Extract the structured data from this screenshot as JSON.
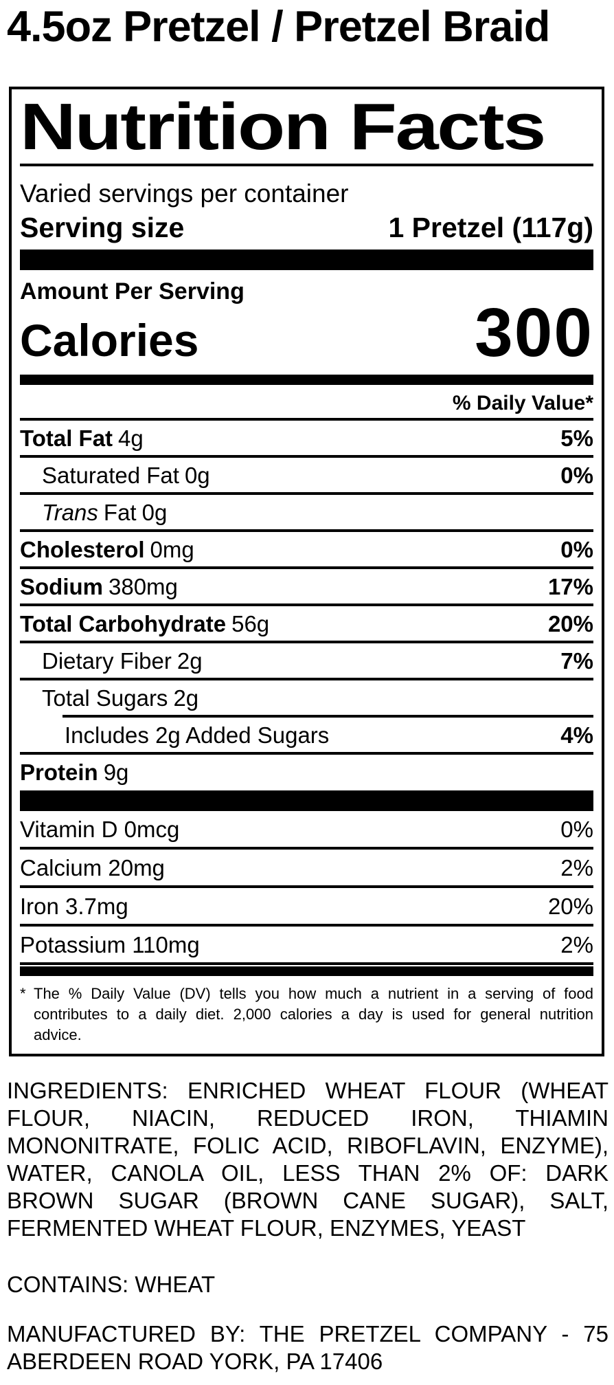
{
  "product_title": "4.5oz Pretzel / Pretzel Braid",
  "label": {
    "title": "Nutrition Facts",
    "servings_per_container": "Varied servings per container",
    "serving_size_label": "Serving size",
    "serving_size_value": "1 Pretzel (117g)",
    "amount_per_serving_label": "Amount Per Serving",
    "calories_label": "Calories",
    "calories_value": "300",
    "daily_value_header": "% Daily Value*",
    "rows": [
      {
        "name": "Total Fat",
        "amount": "4g",
        "dv": "5%"
      },
      {
        "name": "Saturated Fat",
        "amount": "0g",
        "dv": "0%"
      },
      {
        "name_italic": "Trans",
        "name_rest": "Fat",
        "amount": "0g",
        "dv": ""
      },
      {
        "name": "Cholesterol",
        "amount": "0mg",
        "dv": "0%"
      },
      {
        "name": "Sodium",
        "amount": "380mg",
        "dv": "17%"
      },
      {
        "name": "Total Carbohydrate",
        "amount": "56g",
        "dv": "20%"
      },
      {
        "name": "Dietary Fiber",
        "amount": "2g",
        "dv": "7%"
      },
      {
        "name": "Total Sugars",
        "amount": "2g",
        "dv": ""
      },
      {
        "name": "Includes 2g Added Sugars",
        "amount": "",
        "dv": "4%"
      },
      {
        "name": "Protein",
        "amount": "9g",
        "dv": ""
      }
    ],
    "vitamins": [
      {
        "name": "Vitamin D 0mcg",
        "dv": "0%"
      },
      {
        "name": "Calcium 20mg",
        "dv": "2%"
      },
      {
        "name": "Iron 3.7mg",
        "dv": "20%"
      },
      {
        "name": "Potassium 110mg",
        "dv": "2%"
      }
    ],
    "footnote": {
      "star": "*",
      "lines": [
        "The % Daily Value (DV) tells you how much a nutrient in a serving of food",
        "contributes to a daily diet. 2,000 calories a day is used for general nutrition",
        "advice."
      ]
    }
  },
  "ingredients": {
    "lines": [
      "INGREDIENTS: ENRICHED WHEAT FLOUR (WHEAT",
      "FLOUR, NIACIN, REDUCED IRON, THIAMIN",
      "MONONITRATE, FOLIC ACID, RIBOFLAVIN, ENZYME),",
      "WATER, CANOLA OIL, LESS THAN 2% OF: DARK",
      "BROWN SUGAR (BROWN CANE SUGAR), SALT,",
      "FERMENTED WHEAT FLOUR, ENZYMES, YEAST"
    ]
  },
  "contains": "CONTAINS: WHEAT",
  "manufactured": {
    "lines": [
      "MANUFACTURED BY: THE PRETZEL COMPANY - 75",
      "ABERDEEN ROAD YORK, PA 17406"
    ]
  },
  "colors": {
    "text": "#000000",
    "background": "#ffffff"
  }
}
